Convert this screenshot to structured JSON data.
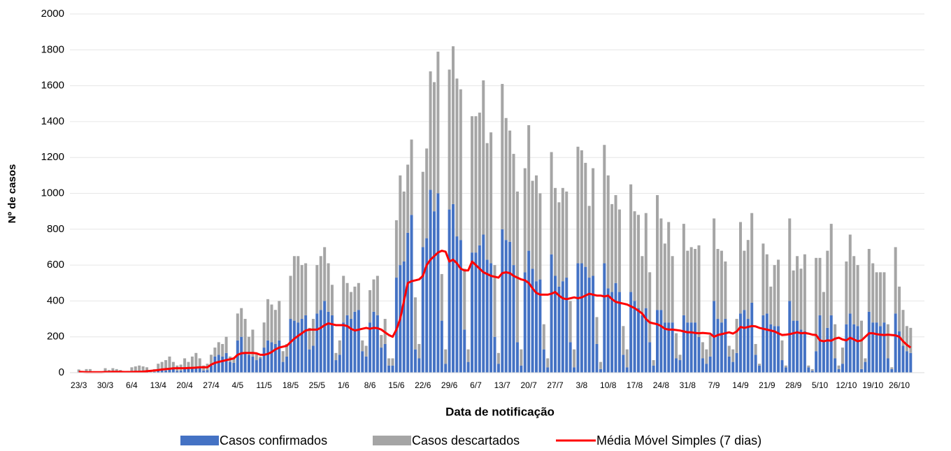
{
  "chart_data": {
    "type": "bar",
    "stacked": true,
    "x_label": "Data de notificação",
    "y_label": "Nº de casos",
    "ylim": [
      0,
      2000
    ],
    "yticks": [
      0,
      200,
      400,
      600,
      800,
      1000,
      1200,
      1400,
      1600,
      1800,
      2000
    ],
    "grid": true,
    "legend": "bottom",
    "categories": [
      "23/3",
      null,
      null,
      null,
      null,
      null,
      null,
      "30/3",
      null,
      null,
      null,
      null,
      null,
      null,
      "6/4",
      null,
      null,
      null,
      null,
      null,
      null,
      "13/4",
      null,
      null,
      null,
      null,
      null,
      null,
      "20/4",
      null,
      null,
      null,
      null,
      null,
      null,
      "27/4",
      null,
      null,
      null,
      null,
      null,
      null,
      "4/5",
      null,
      null,
      null,
      null,
      null,
      null,
      "11/5",
      null,
      null,
      null,
      null,
      null,
      null,
      "18/5",
      null,
      null,
      null,
      null,
      null,
      null,
      "25/5",
      null,
      null,
      null,
      null,
      null,
      null,
      "1/6",
      null,
      null,
      null,
      null,
      null,
      null,
      "8/6",
      null,
      null,
      null,
      null,
      null,
      null,
      "15/6",
      null,
      null,
      null,
      null,
      null,
      null,
      "22/6",
      null,
      null,
      null,
      null,
      null,
      null,
      "29/6",
      null,
      null,
      null,
      null,
      null,
      null,
      "6/7",
      null,
      null,
      null,
      null,
      null,
      null,
      "13/7",
      null,
      null,
      null,
      null,
      null,
      null,
      "20/7",
      null,
      null,
      null,
      null,
      null,
      null,
      "27/7",
      null,
      null,
      null,
      null,
      null,
      null,
      "3/8",
      null,
      null,
      null,
      null,
      null,
      null,
      "10/8",
      null,
      null,
      null,
      null,
      null,
      null,
      "17/8",
      null,
      null,
      null,
      null,
      null,
      null,
      "24/8",
      null,
      null,
      null,
      null,
      null,
      null,
      "31/8",
      null,
      null,
      null,
      null,
      null,
      null,
      "7/9",
      null,
      null,
      null,
      null,
      null,
      null,
      "14/9",
      null,
      null,
      null,
      null,
      null,
      null,
      "21/9",
      null,
      null,
      null,
      null,
      null,
      null,
      "28/9",
      null,
      null,
      null,
      null,
      null,
      null,
      "5/10",
      null,
      null,
      null,
      null,
      null,
      null,
      "12/10",
      null,
      null,
      null,
      null,
      null,
      null,
      "19/10",
      null,
      null,
      null,
      null,
      null,
      null,
      "26/10",
      null,
      null,
      null
    ],
    "series": [
      {
        "name": "Casos confirmados",
        "color": "#4472c4",
        "values": [
          3,
          2,
          4,
          5,
          3,
          2,
          2,
          3,
          4,
          5,
          3,
          4,
          2,
          3,
          5,
          6,
          5,
          4,
          6,
          3,
          4,
          10,
          15,
          12,
          18,
          20,
          10,
          12,
          20,
          25,
          22,
          30,
          28,
          12,
          15,
          40,
          90,
          100,
          90,
          110,
          60,
          55,
          180,
          200,
          110,
          100,
          90,
          70,
          80,
          140,
          180,
          170,
          160,
          180,
          60,
          90,
          300,
          290,
          280,
          300,
          320,
          130,
          150,
          330,
          350,
          400,
          340,
          320,
          70,
          100,
          280,
          320,
          300,
          340,
          350,
          120,
          90,
          280,
          340,
          320,
          140,
          160,
          40,
          40,
          530,
          600,
          620,
          780,
          880,
          130,
          80,
          700,
          750,
          1020,
          900,
          1000,
          290,
          50,
          910,
          940,
          760,
          740,
          240,
          60,
          670,
          670,
          710,
          770,
          630,
          610,
          200,
          50,
          800,
          740,
          730,
          600,
          170,
          40,
          560,
          680,
          580,
          510,
          520,
          130,
          30,
          660,
          540,
          480,
          510,
          530,
          170,
          30,
          610,
          610,
          590,
          530,
          540,
          160,
          20,
          610,
          470,
          450,
          500,
          450,
          100,
          30,
          450,
          400,
          360,
          320,
          360,
          170,
          40,
          350,
          350,
          280,
          280,
          280,
          80,
          70,
          320,
          280,
          280,
          280,
          200,
          80,
          50,
          90,
          400,
          300,
          280,
          300,
          90,
          60,
          110,
          330,
          350,
          300,
          390,
          100,
          40,
          320,
          330,
          270,
          260,
          260,
          70,
          30,
          400,
          290,
          290,
          240,
          230,
          30,
          10,
          120,
          320,
          180,
          250,
          320,
          80,
          20,
          50,
          270,
          330,
          270,
          260,
          20,
          60,
          340,
          280,
          280,
          260,
          280,
          80,
          20,
          330,
          230,
          150,
          120,
          110
        ]
      },
      {
        "name": "Casos descartados",
        "color": "#a5a5a5",
        "values": [
          15,
          8,
          16,
          15,
          5,
          3,
          3,
          22,
          11,
          20,
          17,
          11,
          6,
          7,
          25,
          29,
          35,
          31,
          24,
          12,
          16,
          40,
          45,
          58,
          72,
          40,
          30,
          33,
          60,
          35,
          68,
          80,
          52,
          28,
          35,
          60,
          50,
          70,
          70,
          90,
          30,
          25,
          150,
          160,
          190,
          100,
          150,
          40,
          10,
          140,
          230,
          210,
          190,
          220,
          60,
          70,
          240,
          360,
          370,
          300,
          290,
          120,
          150,
          270,
          300,
          300,
          270,
          170,
          40,
          80,
          260,
          180,
          150,
          140,
          150,
          60,
          60,
          180,
          180,
          220,
          70,
          140,
          40,
          40,
          320,
          500,
          390,
          380,
          420,
          290,
          80,
          420,
          500,
          660,
          720,
          790,
          260,
          80,
          780,
          880,
          880,
          840,
          340,
          70,
          760,
          760,
          740,
          860,
          650,
          730,
          400,
          60,
          810,
          680,
          620,
          620,
          840,
          90,
          580,
          700,
          490,
          590,
          480,
          140,
          50,
          570,
          490,
          470,
          520,
          480,
          230,
          100,
          650,
          630,
          580,
          400,
          600,
          150,
          40,
          660,
          630,
          490,
          490,
          460,
          160,
          100,
          600,
          500,
          520,
          330,
          530,
          390,
          30,
          640,
          510,
          440,
          560,
          370,
          140,
          30,
          510,
          400,
          420,
          410,
          510,
          90,
          80,
          120,
          460,
          390,
          400,
          320,
          60,
          70,
          190,
          510,
          330,
          440,
          500,
          60,
          10,
          400,
          330,
          210,
          340,
          370,
          110,
          10,
          460,
          280,
          360,
          340,
          430,
          10,
          10,
          520,
          320,
          270,
          430,
          510,
          190,
          20,
          90,
          350,
          440,
          380,
          340,
          270,
          20,
          350,
          330,
          280,
          300,
          280,
          190,
          10,
          370,
          250,
          200,
          140,
          140
        ]
      },
      {
        "name": "Média Móvel Simples (7 dias)",
        "color": "#ff0000",
        "type": "line",
        "values": [
          5,
          4,
          3,
          3,
          3,
          3,
          3,
          4,
          4,
          5,
          5,
          5,
          4,
          4,
          4,
          5,
          5,
          6,
          8,
          10,
          12,
          15,
          18,
          20,
          22,
          24,
          25,
          25,
          25,
          26,
          27,
          28,
          30,
          30,
          30,
          45,
          55,
          60,
          65,
          70,
          75,
          80,
          100,
          108,
          110,
          110,
          110,
          108,
          100,
          100,
          105,
          115,
          130,
          140,
          145,
          150,
          170,
          190,
          205,
          220,
          235,
          240,
          240,
          240,
          250,
          265,
          275,
          270,
          265,
          265,
          265,
          260,
          245,
          235,
          240,
          245,
          250,
          245,
          250,
          248,
          240,
          225,
          210,
          200,
          240,
          300,
          400,
          500,
          510,
          515,
          520,
          540,
          600,
          630,
          650,
          670,
          680,
          675,
          620,
          630,
          610,
          580,
          570,
          570,
          620,
          600,
          580,
          560,
          550,
          540,
          535,
          530,
          555,
          560,
          555,
          540,
          530,
          520,
          515,
          500,
          470,
          445,
          435,
          435,
          435,
          440,
          450,
          430,
          415,
          410,
          415,
          420,
          415,
          420,
          430,
          440,
          435,
          430,
          430,
          425,
          430,
          410,
          395,
          390,
          385,
          380,
          370,
          360,
          345,
          330,
          300,
          280,
          275,
          270,
          260,
          245,
          240,
          240,
          238,
          235,
          230,
          225,
          225,
          222,
          220,
          222,
          220,
          218,
          200,
          210,
          215,
          220,
          225,
          218,
          230,
          255,
          250,
          255,
          260,
          258,
          250,
          245,
          240,
          235,
          230,
          220,
          210,
          212,
          215,
          220,
          225,
          220,
          222,
          218,
          212,
          210,
          180,
          175,
          180,
          178,
          190,
          195,
          185,
          180,
          195,
          185,
          175,
          180,
          200,
          220,
          220,
          215,
          212,
          210,
          212,
          210,
          208,
          200,
          175,
          155,
          140
        ]
      }
    ]
  }
}
